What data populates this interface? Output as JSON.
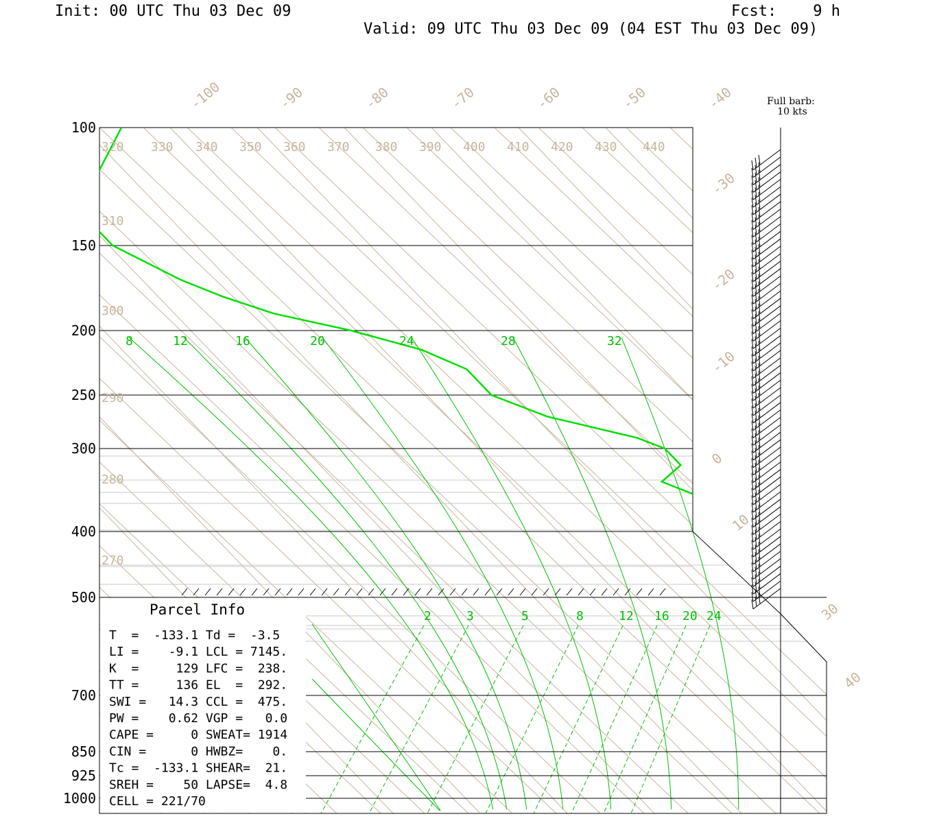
{
  "header": {
    "init": "Init: 00 UTC Thu 03 Dec 09",
    "fcst": "Fcst:    9 h",
    "valid": "Valid: 09 UTC Thu 03 Dec 09 (04 EST Thu 03 Dec 09)"
  },
  "barb_legend": {
    "line1": "Full barb:",
    "line2": "10 kts"
  },
  "colors": {
    "isotherm": "#c8b49b",
    "dry_adiabat": "#c8b49b",
    "moist": "#00c000",
    "profile": "#00e000",
    "frame": "#000000"
  },
  "chart_data": {
    "type": "skew-t",
    "pressure_labels": [
      "100",
      "150",
      "200",
      "250",
      "300",
      "400",
      "500",
      "700",
      "850",
      "925",
      "1000"
    ],
    "pressure_levels": [
      100,
      150,
      200,
      250,
      300,
      400,
      500,
      700,
      850,
      925,
      1000
    ],
    "isotherm_labels": [
      "-100",
      "-90",
      "-80",
      "-70",
      "-60",
      "-50",
      "-40",
      "-30",
      "-20",
      "-10",
      "0",
      "10",
      "30",
      "40"
    ],
    "isotherm_values": [
      -100,
      -90,
      -80,
      -70,
      -60,
      -50,
      -40,
      -30,
      -20,
      -10,
      0,
      10,
      30,
      40
    ],
    "theta_labels": [
      "320",
      "330",
      "340",
      "350",
      "360",
      "370",
      "380",
      "390",
      "400",
      "410",
      "420",
      "430",
      "440",
      "310",
      "300",
      "290",
      "280",
      "270"
    ],
    "moist_adiabat_labels": [
      "8",
      "12",
      "16",
      "20",
      "24",
      "28",
      "32"
    ],
    "mixing_ratio_labels": [
      "2",
      "3",
      "5",
      "8",
      "12",
      "16",
      "20",
      "24"
    ],
    "profile": {
      "pressure": [
        100,
        110,
        120,
        130,
        140,
        150,
        160,
        170,
        180,
        190,
        200,
        215,
        230,
        250,
        270,
        290,
        300,
        320,
        340,
        360,
        380,
        390,
        400,
        415,
        430,
        450,
        470,
        480
      ],
      "temperature": [
        -30,
        -34,
        -38,
        -42,
        -44,
        -44,
        -42,
        -40,
        -37,
        -33,
        -26,
        -20,
        -17,
        -17,
        -13,
        -5,
        -3,
        -3,
        -7,
        -4,
        -1,
        0,
        -1,
        -4,
        -3,
        -1,
        -2,
        -4
      ]
    },
    "wind_barbs": 60
  },
  "parcel_info": {
    "title": "Parcel Info",
    "rows": [
      "T  =  -133.1 Td =  -3.5",
      "LI =    -9.1 LCL = 7145.",
      "K  =     129 LFC =  238.",
      "TT =     136 EL  =  292.",
      "SWI =   14.3 CCL =  475.",
      "PW =    0.62 VGP =   0.0",
      "CAPE =     0 SWEAT= 1914",
      "CIN =      0 HWBZ=    0.",
      "Tc =  -133.1 SHEAR=  21.",
      "SREH =    50 LAPSE=  4.8",
      "CELL = 221/70"
    ]
  }
}
